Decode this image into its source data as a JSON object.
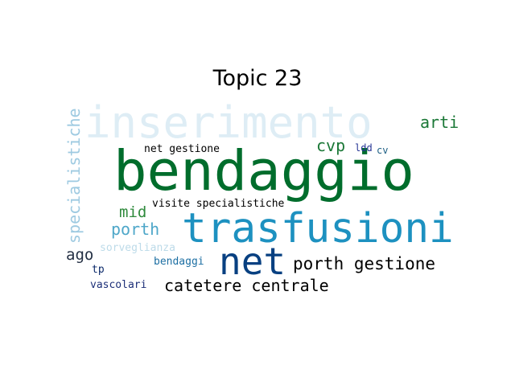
{
  "title": "Topic 23",
  "words": {
    "inserimento": {
      "text": "inserimento",
      "color": "#deedf5"
    },
    "bendaggio": {
      "text": "bendaggio",
      "color": "#006d2c"
    },
    "trasfusioni": {
      "text": "trasfusioni",
      "color": "#1d91c0"
    },
    "net": {
      "text": "net",
      "color": "#084081"
    },
    "specialistiche": {
      "text": "specialistiche",
      "color": "#9ecae1"
    },
    "arti": {
      "text": "arti",
      "color": "#1b7837"
    },
    "cvp": {
      "text": "cvp",
      "color": "#1b7837"
    },
    "net_gestione": {
      "text": "net gestione",
      "color": "#cfe6ef"
    },
    "ldd": {
      "text": "ldd",
      "color": "#253494"
    },
    "cv": {
      "text": "cv",
      "color": "#1d5f84"
    },
    "visite_specialistiche": {
      "text": "visite specialistiche",
      "color": "#1b7837"
    },
    "mid": {
      "text": "mid",
      "color": "#2f8a3c"
    },
    "porth": {
      "text": "porth",
      "color": "#4ea7c9"
    },
    "porth_gestione": {
      "text": "porth gestione",
      "color": "#4ea7c9"
    },
    "sorveglianza": {
      "text": "sorveglianza",
      "color": "#bddbe9"
    },
    "ago": {
      "text": "ago",
      "color": "#243044"
    },
    "tp": {
      "text": "tp",
      "color": "#0c2a6a"
    },
    "bendaggi": {
      "text": "bendaggi",
      "color": "#1d6fa3"
    },
    "catetere_centrale": {
      "text": "catetere centrale",
      "color": "#1a5f95"
    },
    "vascolari": {
      "text": "vascolari",
      "color": "#1c2f78"
    }
  }
}
